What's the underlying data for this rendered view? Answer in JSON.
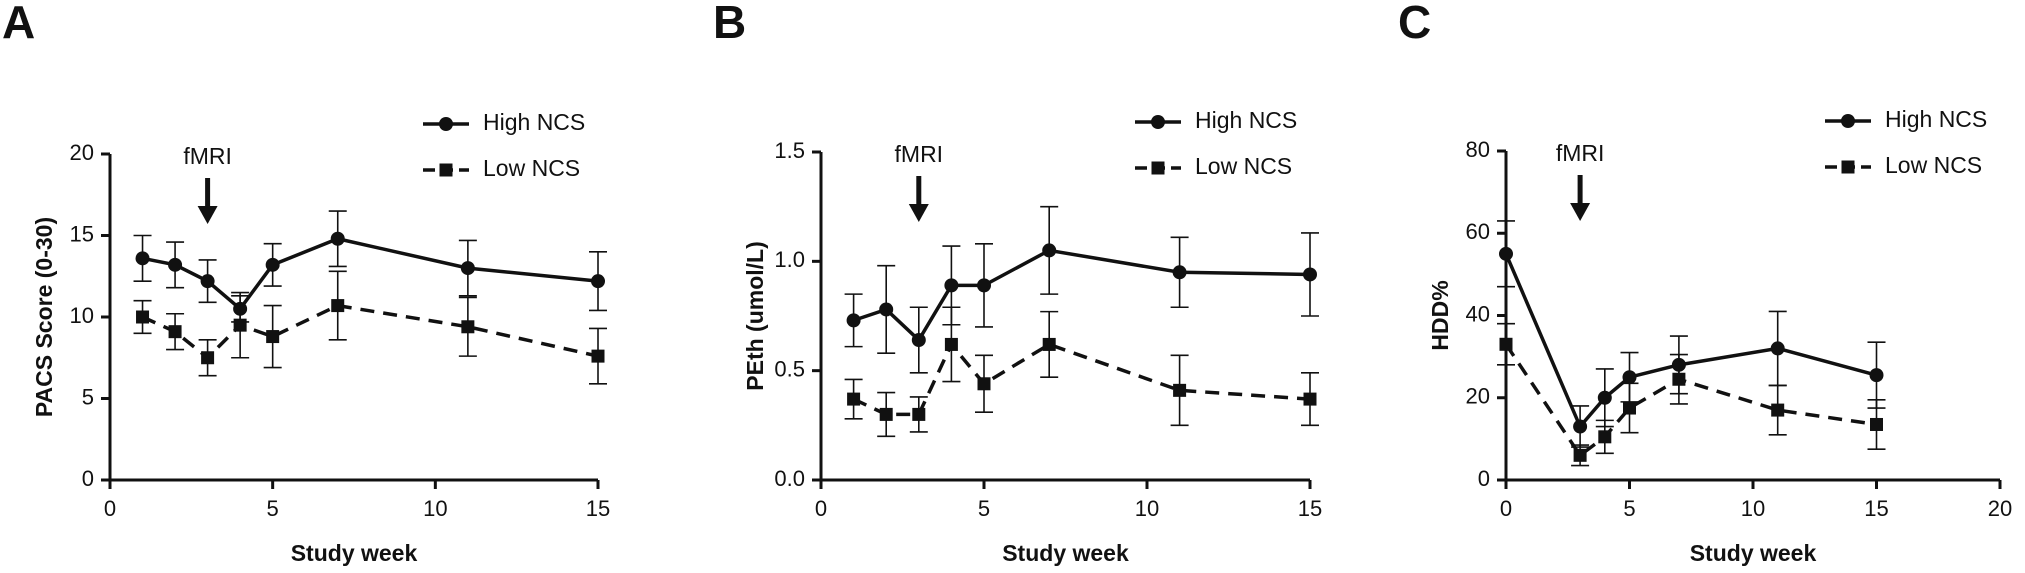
{
  "chart_data": [
    {
      "type": "line",
      "panel_label": "A",
      "xlabel": "Study week",
      "ylabel": "PACS Score (0-30)",
      "annotation": {
        "text": "fMRI",
        "x": 3
      },
      "xlim": [
        0,
        15
      ],
      "xticks": [
        0,
        5,
        10,
        15
      ],
      "ylim": [
        0,
        20
      ],
      "yticks": [
        0,
        5,
        10,
        15,
        20
      ],
      "legend": "upper right",
      "x": [
        1,
        2,
        3,
        4,
        5,
        7,
        11,
        15
      ],
      "series": [
        {
          "name": "High NCS",
          "color": "#111111",
          "marker": "circle",
          "linestyle": "solid",
          "values": [
            13.6,
            13.2,
            12.2,
            10.5,
            13.2,
            14.8,
            13.0,
            12.2
          ],
          "errors": [
            1.4,
            1.4,
            1.3,
            0.8,
            1.3,
            1.7,
            1.7,
            1.8
          ]
        },
        {
          "name": "Low NCS",
          "color": "#111111",
          "marker": "square",
          "linestyle": "dashed",
          "values": [
            10.0,
            9.1,
            7.5,
            9.5,
            8.8,
            10.7,
            9.4,
            7.6
          ],
          "errors": [
            1.0,
            1.1,
            1.1,
            2.0,
            1.9,
            2.1,
            1.8,
            1.7
          ]
        }
      ]
    },
    {
      "type": "line",
      "panel_label": "B",
      "xlabel": "Study week",
      "ylabel": "PEth (umol/L)",
      "annotation": {
        "text": "fMRI",
        "x": 3
      },
      "xlim": [
        0,
        15
      ],
      "xticks": [
        0,
        5,
        10,
        15
      ],
      "ylim": [
        0,
        1.5
      ],
      "yticks": [
        {
          "value": 0,
          "label": "0.0"
        },
        0.5,
        {
          "value": 1,
          "label": "1.0"
        },
        1.5
      ],
      "legend": "upper right",
      "x": [
        1,
        2,
        3,
        4,
        5,
        7,
        11,
        15
      ],
      "series": [
        {
          "name": "High NCS",
          "color": "#111111",
          "marker": "circle",
          "linestyle": "solid",
          "values": [
            0.73,
            0.78,
            0.64,
            0.89,
            0.89,
            1.05,
            0.95,
            0.94
          ],
          "errors": [
            0.12,
            0.2,
            0.15,
            0.18,
            0.19,
            0.2,
            0.16,
            0.19
          ]
        },
        {
          "name": "Low NCS",
          "color": "#111111",
          "marker": "square",
          "linestyle": "dashed",
          "values": [
            0.37,
            0.3,
            0.3,
            0.62,
            0.44,
            0.62,
            0.41,
            0.37
          ],
          "errors": [
            0.09,
            0.1,
            0.08,
            0.17,
            0.13,
            0.15,
            0.16,
            0.12
          ]
        }
      ]
    },
    {
      "type": "line",
      "panel_label": "C",
      "xlabel": "Study week",
      "ylabel": "HDD%",
      "annotation": {
        "text": "fMRI",
        "x": 3
      },
      "xlim": [
        0,
        20
      ],
      "xticks": [
        0,
        5,
        10,
        15,
        20
      ],
      "ylim": [
        0,
        80
      ],
      "yticks": [
        0,
        20,
        40,
        60,
        80
      ],
      "legend": "upper right",
      "x": [
        0,
        3,
        4,
        5,
        7,
        11,
        15
      ],
      "series": [
        {
          "name": "High NCS",
          "color": "#111111",
          "marker": "circle",
          "linestyle": "solid",
          "values": [
            55,
            13,
            20,
            25,
            28,
            32,
            25.5
          ],
          "errors": [
            8,
            5,
            7,
            6,
            7,
            9,
            8
          ]
        },
        {
          "name": "Low NCS",
          "color": "#111111",
          "marker": "square",
          "linestyle": "dashed",
          "values": [
            33,
            6,
            10.5,
            17.5,
            24.5,
            17,
            13.5
          ],
          "errors": [
            5,
            2.5,
            4,
            6,
            6,
            6,
            6
          ]
        }
      ]
    }
  ]
}
